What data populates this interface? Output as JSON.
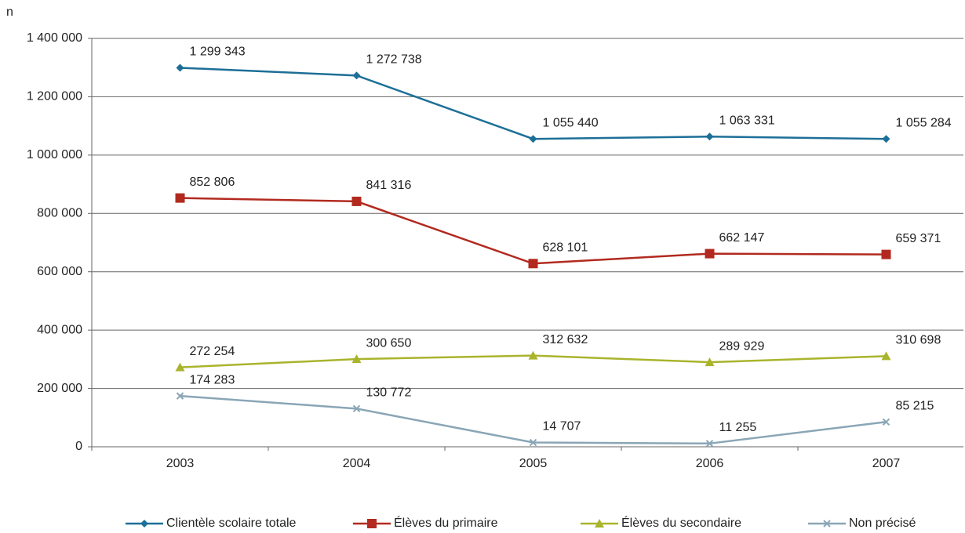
{
  "chart_data": {
    "type": "line",
    "ylabel": "n",
    "categories": [
      "2003",
      "2004",
      "2005",
      "2006",
      "2007"
    ],
    "ylim": [
      0,
      1400000
    ],
    "yticks": [
      0,
      {
        "value": 200000,
        "label": "200 000"
      },
      {
        "value": 400000,
        "label": "400 000"
      },
      {
        "value": 600000,
        "label": "600 000"
      },
      {
        "value": 800000,
        "label": "800 000"
      },
      {
        "value": 1000000,
        "label": "1 000 000"
      },
      {
        "value": 1200000,
        "label": "1 200 000"
      },
      {
        "value": 1400000,
        "label": "1 400 000"
      }
    ],
    "grid": true,
    "legend": "bottom",
    "series": [
      {
        "name": "Clientèle scolaire totale",
        "color": "#1d6f98",
        "marker": "diamond",
        "values": [
          1299343,
          1272738,
          1055440,
          1063331,
          1055284
        ],
        "value_labels": [
          "1 299 343",
          "1 272 738",
          "1 055 440",
          "1 063 331",
          "1 055 284"
        ]
      },
      {
        "name": "Élèves du primaire",
        "color": "#b22a1f",
        "marker": "square",
        "values": [
          852806,
          841316,
          628101,
          662147,
          659371
        ],
        "value_labels": [
          "852 806",
          "841 316",
          "628 101",
          "662 147",
          "659 371"
        ]
      },
      {
        "name": "Élèves du secondaire",
        "color": "#a9b42c",
        "marker": "triangle",
        "values": [
          272254,
          300650,
          312632,
          289929,
          310698
        ],
        "value_labels": [
          "272 254",
          "300 650",
          "312 632",
          "289 929",
          "310 698"
        ]
      },
      {
        "name": "Non précisé",
        "color": "#8aa6b6",
        "marker": "x",
        "values": [
          174283,
          130772,
          14707,
          11255,
          85215
        ],
        "value_labels": [
          "174 283",
          "130 772",
          "14 707",
          "11 255",
          "85 215"
        ]
      }
    ]
  }
}
